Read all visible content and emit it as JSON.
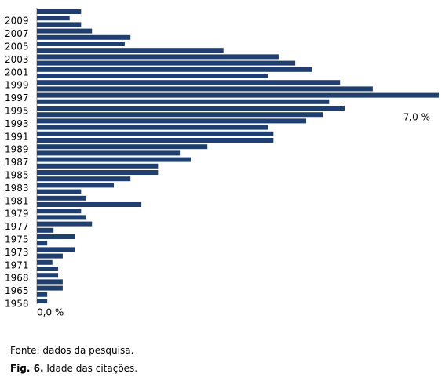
{
  "chart_data": {
    "type": "barh",
    "categories": [
      null,
      "2009",
      null,
      "2007",
      null,
      "2005",
      null,
      "2003",
      null,
      "2001",
      null,
      "1999",
      null,
      "1997",
      null,
      "1995",
      null,
      "1993",
      null,
      "1991",
      null,
      "1989",
      null,
      "1987",
      null,
      "1985",
      null,
      "1983",
      null,
      "1981",
      null,
      "1979",
      null,
      "1977",
      null,
      "1975",
      null,
      "1973",
      null,
      "1971",
      null,
      "1968",
      null,
      "1965",
      null,
      "1958"
    ],
    "values": [
      0.77,
      0.57,
      0.77,
      0.96,
      1.63,
      1.53,
      3.25,
      4.21,
      4.5,
      4.79,
      4.02,
      5.28,
      5.85,
      7.0,
      5.09,
      5.36,
      4.98,
      4.69,
      4.02,
      4.12,
      4.12,
      2.97,
      2.49,
      2.68,
      2.11,
      2.11,
      1.63,
      1.34,
      0.77,
      0.86,
      1.82,
      0.77,
      0.86,
      0.96,
      0.29,
      0.67,
      0.18,
      0.66,
      0.45,
      0.27,
      0.37,
      0.37,
      0.45,
      0.45,
      0.18,
      0.18
    ],
    "color": "#1f3f70",
    "xlim": [
      0,
      7
    ],
    "xticks": [
      {
        "value": 0,
        "label": "0,0 %"
      },
      {
        "value": 7,
        "label": "7,0 %"
      }
    ],
    "source": "Fonte: dados da pesquisa.",
    "caption_label": "Fig. 6.",
    "caption": "Idade das citações."
  }
}
